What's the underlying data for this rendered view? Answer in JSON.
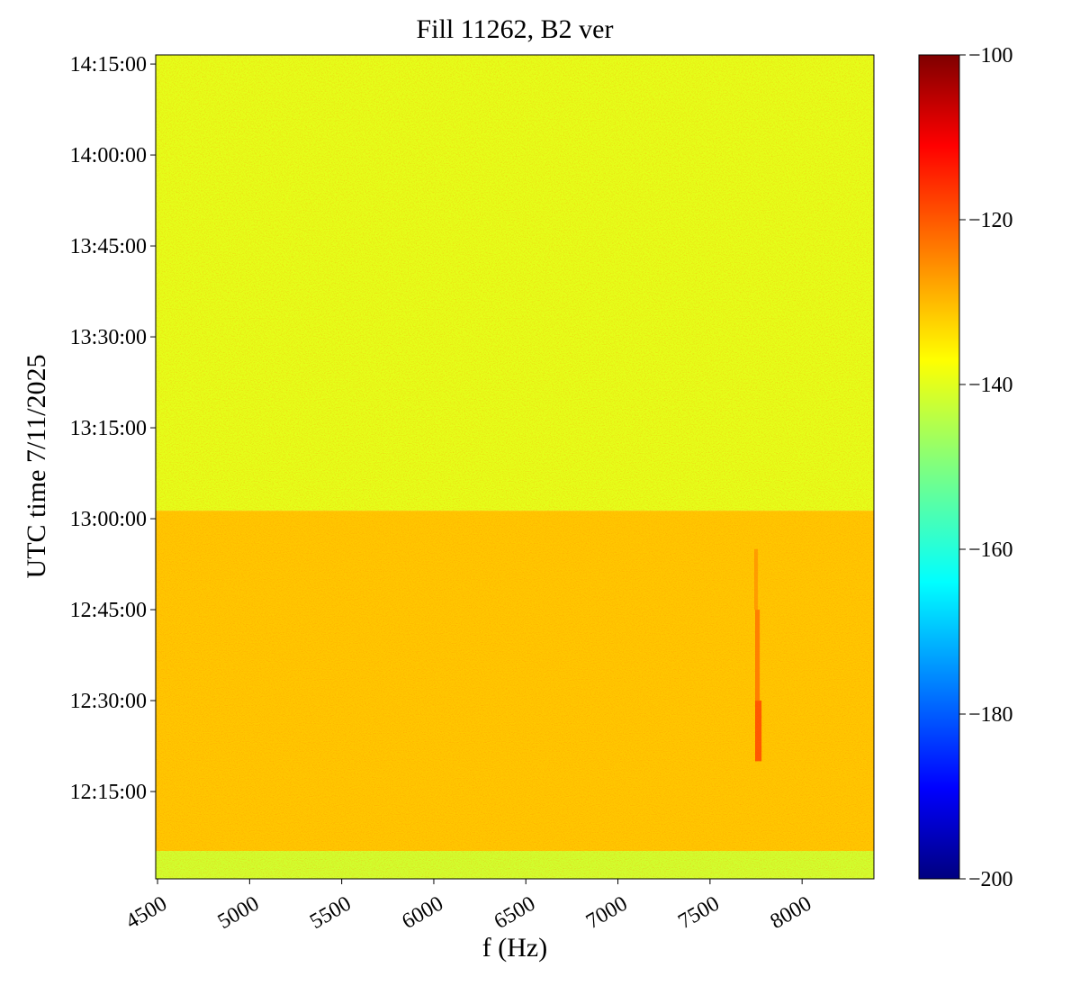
{
  "chart_data": {
    "type": "heatmap",
    "title": "Fill 11262, B2 ver",
    "x_label": "f (Hz)",
    "y_label": "UTC time 7/11/2025",
    "xlim": [
      4490,
      8390
    ],
    "xticks": [
      4500,
      5000,
      5500,
      6000,
      6500,
      7000,
      7500,
      8000
    ],
    "ylim": [
      "12:00:36",
      "14:16:30"
    ],
    "yticks": [
      "12:15:00",
      "12:30:00",
      "12:45:00",
      "13:00:00",
      "13:15:00",
      "13:30:00",
      "13:45:00",
      "14:00:00",
      "14:15:00"
    ],
    "colormap": "jet",
    "clim": [
      -200,
      -100
    ],
    "cticks": [
      {
        "value": -200,
        "label": "−200"
      },
      {
        "value": -180,
        "label": "−180"
      },
      {
        "value": -160,
        "label": "−160"
      },
      {
        "value": -140,
        "label": "−140"
      },
      {
        "value": -120,
        "label": "−120"
      },
      {
        "value": -100,
        "label": "−100"
      }
    ],
    "cells": [
      {
        "f": [
          4490,
          8390
        ],
        "t": [
          "12:00:36",
          "12:05:12"
        ],
        "value": -142
      },
      {
        "f": [
          4490,
          8390
        ],
        "t": [
          "12:05:12",
          "13:01:20"
        ],
        "value": -132
      },
      {
        "f": [
          4490,
          8390
        ],
        "t": [
          "13:01:20",
          "14:16:30"
        ],
        "value": -140
      },
      {
        "f": [
          7745,
          7780
        ],
        "t": [
          "12:20:00",
          "12:30:00"
        ],
        "value": -121
      },
      {
        "f": [
          7745,
          7770
        ],
        "t": [
          "12:30:00",
          "12:45:00"
        ],
        "value": -125
      },
      {
        "f": [
          7740,
          7760
        ],
        "t": [
          "12:45:00",
          "12:55:00"
        ],
        "value": -128
      }
    ]
  }
}
